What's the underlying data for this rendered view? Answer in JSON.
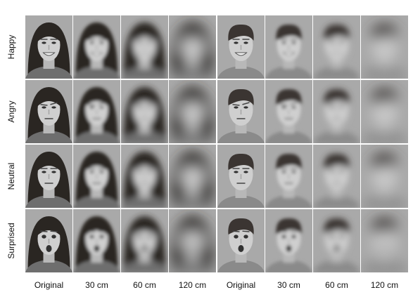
{
  "row_labels": [
    "Happy",
    "Angry",
    "Neutral",
    "Surprised"
  ],
  "column_labels": [
    "Original",
    "30 cm",
    "60 cm",
    "120 cm",
    "Original",
    "30 cm",
    "60 cm",
    "120 cm"
  ]
}
